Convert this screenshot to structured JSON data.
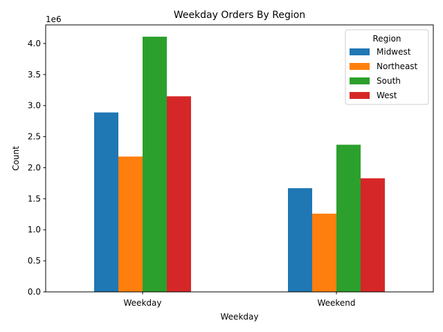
{
  "chart_data": {
    "type": "bar",
    "title": "Weekday Orders By Region",
    "xlabel": "Weekday",
    "ylabel": "Count",
    "y_scale_label": "1e6",
    "categories": [
      "Weekday",
      "Weekend"
    ],
    "ylim": [
      0,
      4.3
    ],
    "y_ticks": [
      0.0,
      0.5,
      1.0,
      1.5,
      2.0,
      2.5,
      3.0,
      3.5,
      4.0
    ],
    "y_tick_labels": [
      "0.0",
      "0.5",
      "1.0",
      "1.5",
      "2.0",
      "2.5",
      "3.0",
      "3.5",
      "4.0"
    ],
    "legend": {
      "title": "Region",
      "placement": "top-right"
    },
    "series": [
      {
        "name": "Midwest",
        "color": "#1f77b4",
        "values": [
          2.89,
          1.67
        ]
      },
      {
        "name": "Northeast",
        "color": "#ff7f0e",
        "values": [
          2.18,
          1.26
        ]
      },
      {
        "name": "South",
        "color": "#2ca02c",
        "values": [
          4.11,
          2.37
        ]
      },
      {
        "name": "West",
        "color": "#d62728",
        "values": [
          3.15,
          1.83
        ]
      }
    ]
  }
}
